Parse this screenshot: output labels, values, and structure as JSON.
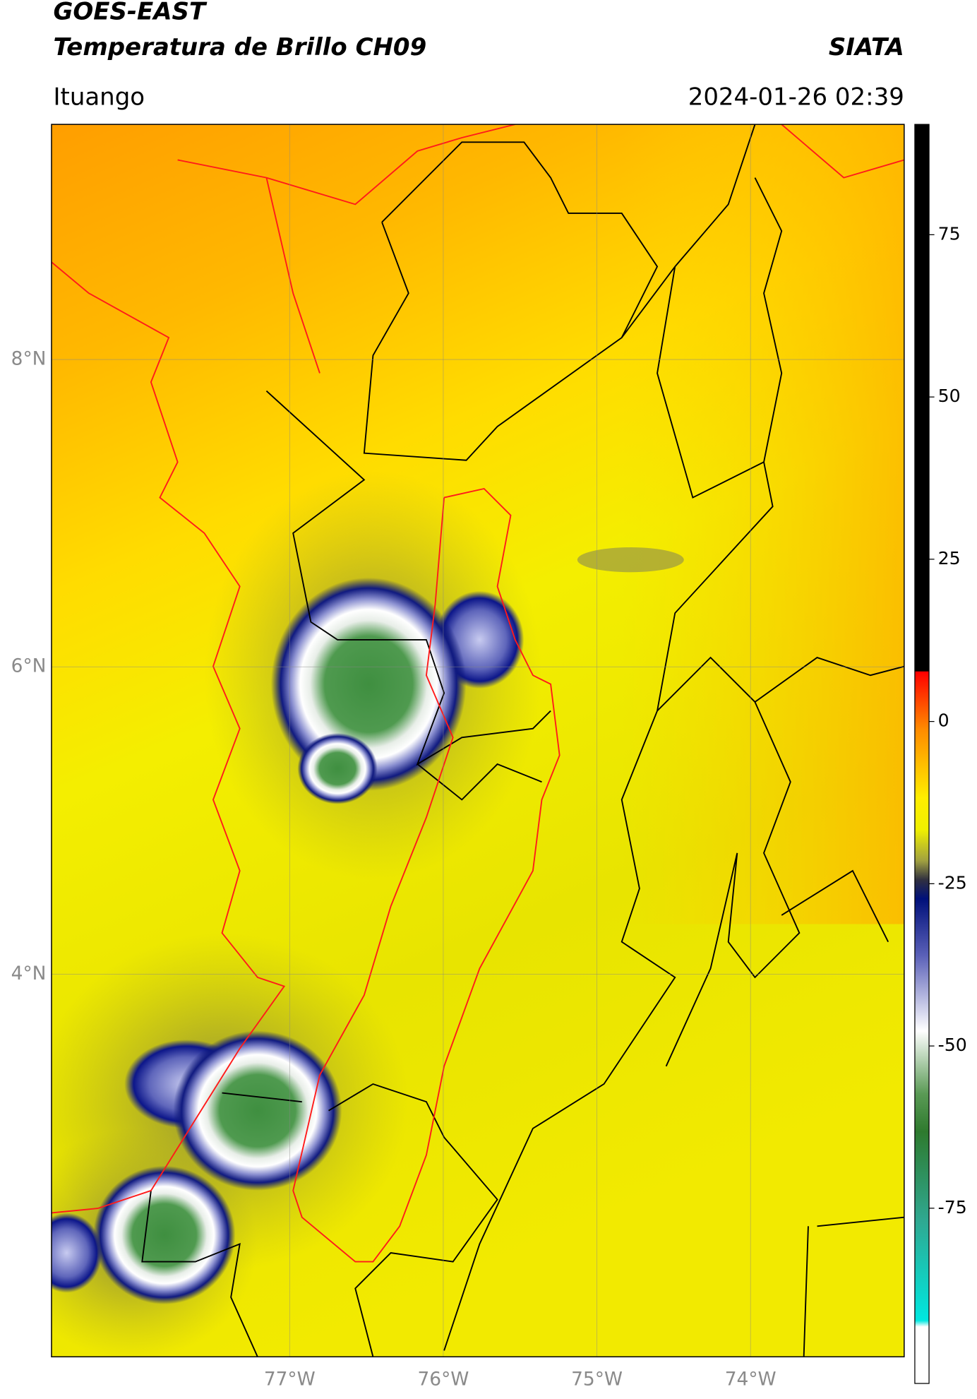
{
  "header": {
    "title": "GOES-EAST",
    "subtitle": "Temperatura de Brillo CH09",
    "source": "SIATA",
    "location": "Ituango",
    "datetime": "2024-01-26 02:39"
  },
  "map": {
    "xlim": [
      -78.55,
      -73.0
    ],
    "ylim": [
      1.51,
      9.53
    ],
    "xticks": [
      {
        "value": -77,
        "label": "77°W"
      },
      {
        "value": -76,
        "label": "76°W"
      },
      {
        "value": -75,
        "label": "75°W"
      },
      {
        "value": -74,
        "label": "74°W"
      }
    ],
    "yticks": [
      {
        "value": 8,
        "label": "8°N"
      },
      {
        "value": 6,
        "label": "6°N"
      },
      {
        "value": 4,
        "label": "4°N"
      }
    ],
    "grid": true
  },
  "colorbar": {
    "lim": [
      -102,
      92
    ],
    "ticks": [
      75,
      50,
      25,
      0,
      -25,
      -50,
      -75
    ]
  }
}
